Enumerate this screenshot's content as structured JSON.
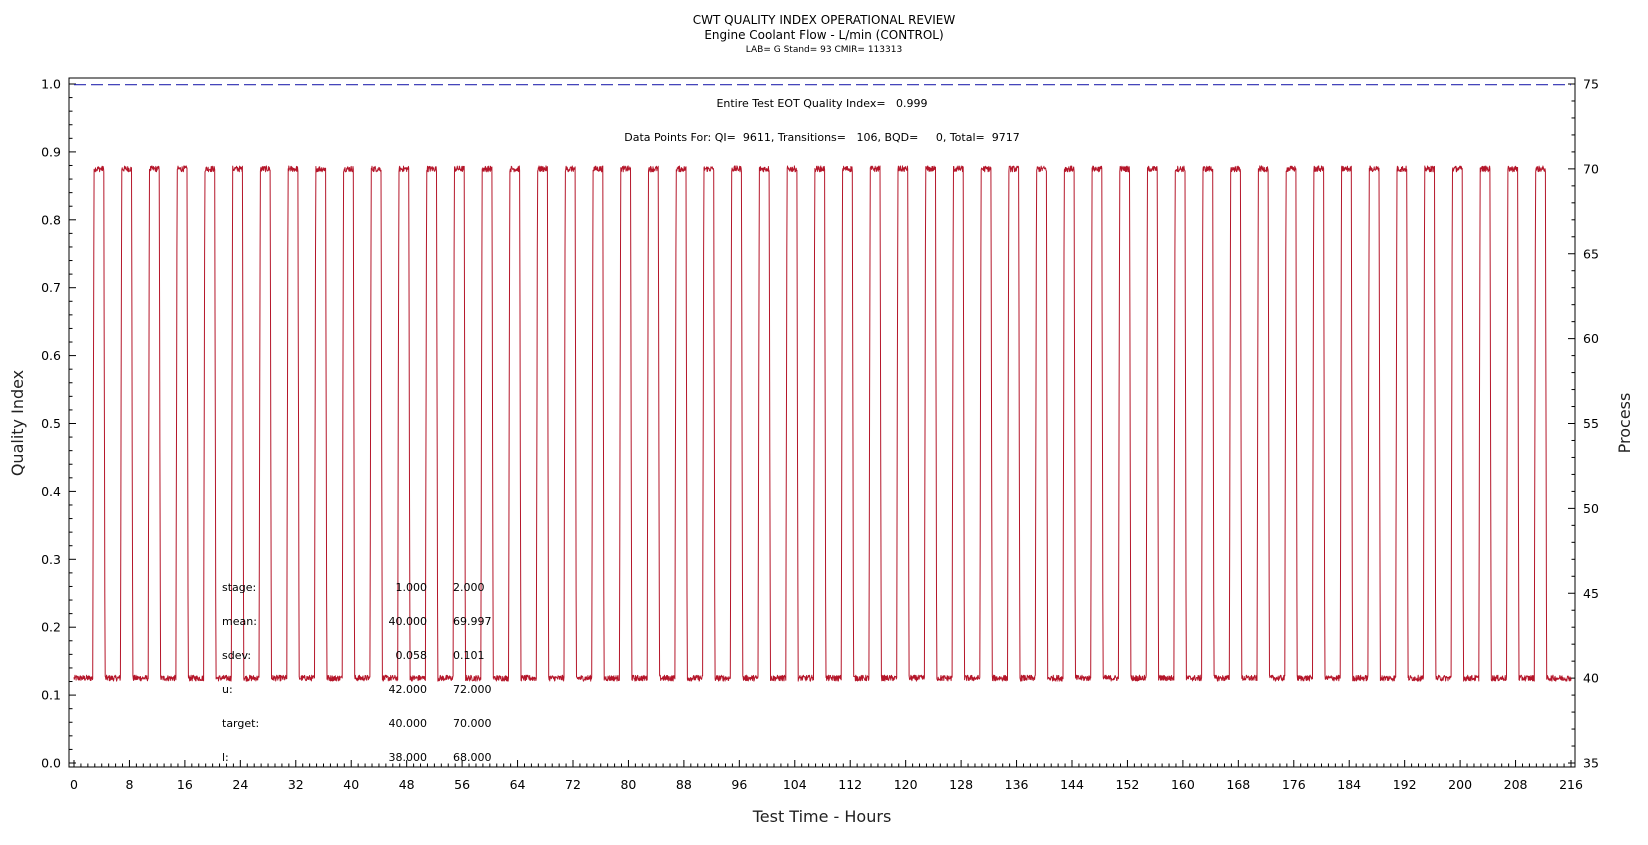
{
  "chart_data": {
    "type": "line",
    "title": "CWT QUALITY INDEX OPERATIONAL REVIEW",
    "subtitle": "Engine Coolant Flow - L/min (CONTROL)",
    "subsubtitle": "LAB= G Stand= 93 CMIR= 113313",
    "xlabel": "Test Time - Hours",
    "ylabel_left": "Quality Index",
    "ylabel_right": "Process",
    "xlim": [
      0,
      216
    ],
    "ylim_left": [
      0.0,
      1.0
    ],
    "ylim_right": [
      35,
      75
    ],
    "x_ticks": [
      "0",
      "8",
      "16",
      "24",
      "32",
      "40",
      "48",
      "56",
      "64",
      "72",
      "80",
      "88",
      "96",
      "104",
      "112",
      "120",
      "128",
      "136",
      "144",
      "152",
      "160",
      "168",
      "176",
      "184",
      "192",
      "200",
      "208",
      "216"
    ],
    "y_ticks_left": [
      "0.0",
      "0.1",
      "0.2",
      "0.3",
      "0.4",
      "0.5",
      "0.6",
      "0.7",
      "0.8",
      "0.9",
      "1.0"
    ],
    "y_ticks_right": [
      "35",
      "40",
      "45",
      "50",
      "55",
      "60",
      "65",
      "70",
      "75"
    ],
    "grid": false,
    "annotations": [
      "Entire Test EOT Quality Index=   0.999",
      "Data Points For: QI=  9611, Transitions=   106, BQD=     0, Total=  9717"
    ],
    "stats_table": [
      {
        "label": "stage:",
        "v1": "1.000",
        "v2": "2.000"
      },
      {
        "label": "mean:",
        "v1": "40.000",
        "v2": "69.997"
      },
      {
        "label": "sdev:",
        "v1": "0.058",
        "v2": "0.101"
      },
      {
        "label": "u:",
        "v1": "42.000",
        "v2": "72.000"
      },
      {
        "label": "target:",
        "v1": "40.000",
        "v2": "70.000"
      },
      {
        "label": "l:",
        "v1": "38.000",
        "v2": "68.000"
      }
    ],
    "series": [
      {
        "name": "Quality Index",
        "axis": "left",
        "color": "#2b2bb0",
        "style": "dashed",
        "x": [
          0,
          216
        ],
        "values": [
          0.999,
          0.999
        ]
      },
      {
        "name": "Process",
        "axis": "right",
        "color": "#b5162a",
        "style": "solid",
        "cycle_period_hours": 4,
        "cycle_count": 53,
        "first_rise_hours": 2.7,
        "high_duration_hours": 1.6,
        "low_level": 40,
        "high_level": 70,
        "x_range": [
          0,
          216
        ]
      }
    ],
    "colors": {
      "qi_line": "#2b2bb0",
      "process_line": "#b5162a",
      "axes": "#000000"
    }
  }
}
